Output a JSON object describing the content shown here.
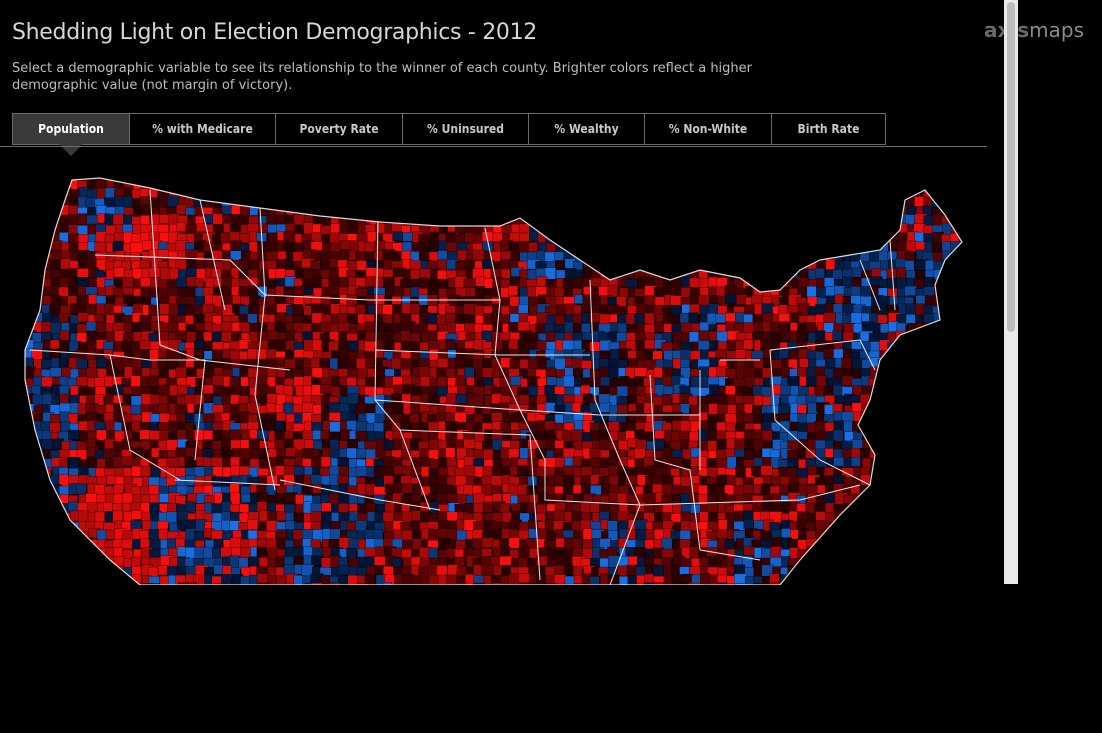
{
  "header": {
    "title": "Shedding Light on Election Demographics - 2012",
    "subtitle": "Select a demographic variable to see its relationship to the winner of each county. Brighter colors reflect a higher demographic value (not margin of victory).",
    "logo_prefix": "axis",
    "logo_suffix": "maps"
  },
  "tabs": [
    {
      "label": "Population",
      "active": true
    },
    {
      "label": "% with Medicare",
      "active": false
    },
    {
      "label": "Poverty Rate",
      "active": false
    },
    {
      "label": "% Uninsured",
      "active": false
    },
    {
      "label": "% Wealthy",
      "active": false
    },
    {
      "label": "% Non-White",
      "active": false
    },
    {
      "label": "Birth Rate",
      "active": false
    }
  ],
  "map": {
    "colors": {
      "republican_bright": "#ff0d0d",
      "republican_dark": "#2a0000",
      "democrat_bright": "#1a6fe8",
      "democrat_dark": "#031230",
      "state_border": "#ffffff",
      "background": "#000000"
    }
  }
}
